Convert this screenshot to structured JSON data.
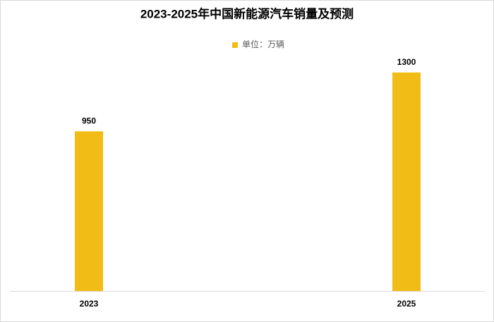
{
  "chart_data": {
    "type": "bar",
    "title": "2023-2025年中国新能源汽车销量及预测",
    "categories": [
      "2023",
      "2025"
    ],
    "series": [
      {
        "name": "单位：万辆",
        "color": "#f2bc16",
        "values": [
          950,
          1300
        ]
      }
    ],
    "ylim": [
      0,
      1400
    ],
    "legend": "top"
  }
}
